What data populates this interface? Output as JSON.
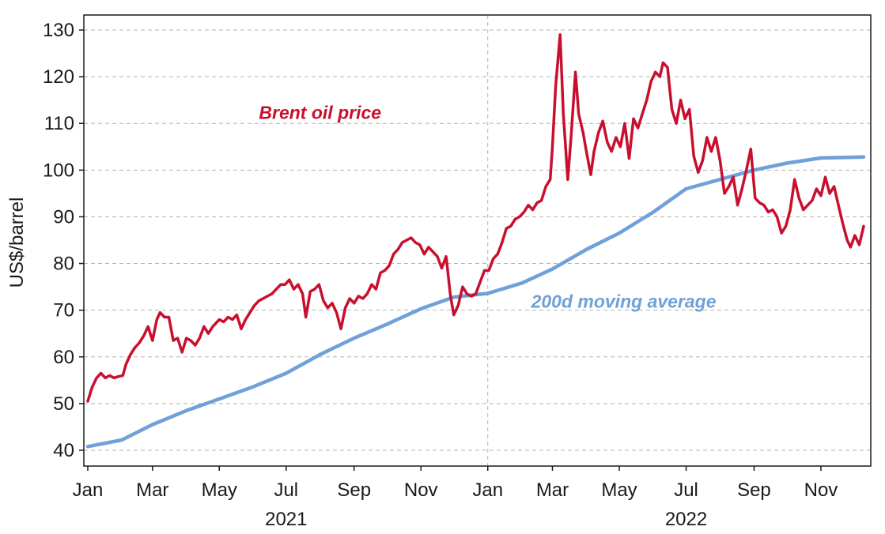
{
  "chart_data": {
    "type": "line",
    "ylabel": "US$/barrel",
    "ylim": [
      40,
      130
    ],
    "y_ticks": [
      40,
      50,
      60,
      70,
      80,
      90,
      100,
      110,
      120,
      130
    ],
    "x_tick_labels": [
      "Jan",
      "Mar",
      "May",
      "Jul",
      "Sep",
      "Nov",
      "Jan",
      "Mar",
      "May",
      "Jul",
      "Sep",
      "Nov"
    ],
    "x_tick_dates": [
      "2021-01-01",
      "2021-03-01",
      "2021-05-01",
      "2021-07-01",
      "2021-09-01",
      "2021-11-01",
      "2022-01-01",
      "2022-03-01",
      "2022-05-01",
      "2022-07-01",
      "2022-09-01",
      "2022-11-01"
    ],
    "year_labels": [
      {
        "label": "2021",
        "date": "2021-07-01"
      },
      {
        "label": "2022",
        "date": "2022-07-01"
      }
    ],
    "xlim": [
      "2021-01-01",
      "2022-12-10"
    ],
    "year_divider": "2022-01-01",
    "grid": "horizontal-dashed",
    "series": [
      {
        "name": "Brent oil price",
        "color": "#c8102e",
        "label_anchor_date": "2021-08-01",
        "label_anchor_value": 111,
        "points": [
          [
            "2021-01-01",
            50.5
          ],
          [
            "2021-01-05",
            53.5
          ],
          [
            "2021-01-09",
            55.5
          ],
          [
            "2021-01-13",
            56.5
          ],
          [
            "2021-01-17",
            55.5
          ],
          [
            "2021-01-21",
            56
          ],
          [
            "2021-01-25",
            55.5
          ],
          [
            "2021-01-29",
            55.8
          ],
          [
            "2021-02-02",
            56
          ],
          [
            "2021-02-05",
            58.5
          ],
          [
            "2021-02-09",
            60.5
          ],
          [
            "2021-02-13",
            62
          ],
          [
            "2021-02-17",
            63
          ],
          [
            "2021-02-21",
            64.5
          ],
          [
            "2021-02-25",
            66.5
          ],
          [
            "2021-03-01",
            63.5
          ],
          [
            "2021-03-05",
            68
          ],
          [
            "2021-03-08",
            69.5
          ],
          [
            "2021-03-12",
            68.5
          ],
          [
            "2021-03-16",
            68.5
          ],
          [
            "2021-03-20",
            63.5
          ],
          [
            "2021-03-24",
            64
          ],
          [
            "2021-03-28",
            61
          ],
          [
            "2021-04-01",
            64
          ],
          [
            "2021-04-05",
            63.5
          ],
          [
            "2021-04-09",
            62.5
          ],
          [
            "2021-04-13",
            64
          ],
          [
            "2021-04-17",
            66.5
          ],
          [
            "2021-04-21",
            65
          ],
          [
            "2021-04-25",
            66.5
          ],
          [
            "2021-05-01",
            68
          ],
          [
            "2021-05-05",
            67.5
          ],
          [
            "2021-05-09",
            68.5
          ],
          [
            "2021-05-13",
            68
          ],
          [
            "2021-05-17",
            69
          ],
          [
            "2021-05-21",
            66
          ],
          [
            "2021-05-25",
            68
          ],
          [
            "2021-05-29",
            69.5
          ],
          [
            "2021-06-02",
            71
          ],
          [
            "2021-06-06",
            72
          ],
          [
            "2021-06-10",
            72.5
          ],
          [
            "2021-06-14",
            73
          ],
          [
            "2021-06-18",
            73.5
          ],
          [
            "2021-06-22",
            74.5
          ],
          [
            "2021-06-26",
            75.5
          ],
          [
            "2021-06-30",
            75.5
          ],
          [
            "2021-07-04",
            76.5
          ],
          [
            "2021-07-08",
            74.5
          ],
          [
            "2021-07-12",
            75.5
          ],
          [
            "2021-07-16",
            73.5
          ],
          [
            "2021-07-19",
            68.5
          ],
          [
            "2021-07-23",
            74
          ],
          [
            "2021-07-27",
            74.5
          ],
          [
            "2021-07-31",
            75.5
          ],
          [
            "2021-08-04",
            72
          ],
          [
            "2021-08-08",
            70.5
          ],
          [
            "2021-08-12",
            71.5
          ],
          [
            "2021-08-16",
            69.5
          ],
          [
            "2021-08-20",
            66
          ],
          [
            "2021-08-24",
            70.5
          ],
          [
            "2021-08-28",
            72.5
          ],
          [
            "2021-09-01",
            71.5
          ],
          [
            "2021-09-05",
            73
          ],
          [
            "2021-09-09",
            72.5
          ],
          [
            "2021-09-13",
            73.5
          ],
          [
            "2021-09-17",
            75.5
          ],
          [
            "2021-09-21",
            74.5
          ],
          [
            "2021-09-25",
            78
          ],
          [
            "2021-09-29",
            78.5
          ],
          [
            "2021-10-03",
            79.5
          ],
          [
            "2021-10-07",
            82
          ],
          [
            "2021-10-11",
            83
          ],
          [
            "2021-10-15",
            84.5
          ],
          [
            "2021-10-19",
            85
          ],
          [
            "2021-10-23",
            85.5
          ],
          [
            "2021-10-27",
            84.5
          ],
          [
            "2021-10-31",
            84
          ],
          [
            "2021-11-04",
            82
          ],
          [
            "2021-11-08",
            83.5
          ],
          [
            "2021-11-12",
            82.5
          ],
          [
            "2021-11-16",
            81.5
          ],
          [
            "2021-11-20",
            79
          ],
          [
            "2021-11-24",
            81.5
          ],
          [
            "2021-11-28",
            73
          ],
          [
            "2021-12-01",
            69
          ],
          [
            "2021-12-05",
            71
          ],
          [
            "2021-12-09",
            75
          ],
          [
            "2021-12-13",
            73.5
          ],
          [
            "2021-12-17",
            73
          ],
          [
            "2021-12-21",
            73.5
          ],
          [
            "2021-12-25",
            76
          ],
          [
            "2021-12-29",
            78.5
          ],
          [
            "2022-01-02",
            78.5
          ],
          [
            "2022-01-06",
            81
          ],
          [
            "2022-01-10",
            82
          ],
          [
            "2022-01-14",
            84.5
          ],
          [
            "2022-01-18",
            87.5
          ],
          [
            "2022-01-22",
            88
          ],
          [
            "2022-01-26",
            89.5
          ],
          [
            "2022-01-30",
            90
          ],
          [
            "2022-02-03",
            91
          ],
          [
            "2022-02-07",
            92.5
          ],
          [
            "2022-02-11",
            91.5
          ],
          [
            "2022-02-15",
            93
          ],
          [
            "2022-02-19",
            93.5
          ],
          [
            "2022-02-23",
            96.5
          ],
          [
            "2022-02-27",
            98
          ],
          [
            "2022-03-01",
            105
          ],
          [
            "2022-03-04",
            118
          ],
          [
            "2022-03-08",
            129
          ],
          [
            "2022-03-11",
            112
          ],
          [
            "2022-03-15",
            98
          ],
          [
            "2022-03-18",
            107
          ],
          [
            "2022-03-22",
            121
          ],
          [
            "2022-03-25",
            112
          ],
          [
            "2022-03-29",
            108
          ],
          [
            "2022-04-01",
            104
          ],
          [
            "2022-04-05",
            99
          ],
          [
            "2022-04-08",
            104
          ],
          [
            "2022-04-12",
            108
          ],
          [
            "2022-04-16",
            110.5
          ],
          [
            "2022-04-20",
            106
          ],
          [
            "2022-04-24",
            104
          ],
          [
            "2022-04-28",
            107
          ],
          [
            "2022-05-02",
            105
          ],
          [
            "2022-05-06",
            110
          ],
          [
            "2022-05-10",
            102.5
          ],
          [
            "2022-05-14",
            111
          ],
          [
            "2022-05-18",
            109
          ],
          [
            "2022-05-22",
            112
          ],
          [
            "2022-05-26",
            115
          ],
          [
            "2022-05-30",
            119
          ],
          [
            "2022-06-03",
            121
          ],
          [
            "2022-06-07",
            120
          ],
          [
            "2022-06-10",
            123
          ],
          [
            "2022-06-14",
            122
          ],
          [
            "2022-06-18",
            113
          ],
          [
            "2022-06-22",
            110
          ],
          [
            "2022-06-26",
            115
          ],
          [
            "2022-06-30",
            111
          ],
          [
            "2022-07-04",
            113
          ],
          [
            "2022-07-08",
            103
          ],
          [
            "2022-07-12",
            99.5
          ],
          [
            "2022-07-16",
            102
          ],
          [
            "2022-07-20",
            107
          ],
          [
            "2022-07-24",
            104
          ],
          [
            "2022-07-28",
            107
          ],
          [
            "2022-08-01",
            102
          ],
          [
            "2022-08-05",
            95
          ],
          [
            "2022-08-09",
            96.5
          ],
          [
            "2022-08-13",
            98.5
          ],
          [
            "2022-08-17",
            92.5
          ],
          [
            "2022-08-21",
            96
          ],
          [
            "2022-08-25",
            100
          ],
          [
            "2022-08-29",
            104.5
          ],
          [
            "2022-09-02",
            94
          ],
          [
            "2022-09-06",
            93
          ],
          [
            "2022-09-10",
            92.5
          ],
          [
            "2022-09-14",
            91
          ],
          [
            "2022-09-18",
            91.5
          ],
          [
            "2022-09-22",
            90
          ],
          [
            "2022-09-26",
            86.5
          ],
          [
            "2022-09-30",
            88
          ],
          [
            "2022-10-04",
            91.5
          ],
          [
            "2022-10-08",
            98
          ],
          [
            "2022-10-12",
            94
          ],
          [
            "2022-10-16",
            91.5
          ],
          [
            "2022-10-20",
            92.5
          ],
          [
            "2022-10-24",
            93.5
          ],
          [
            "2022-10-28",
            96
          ],
          [
            "2022-11-01",
            94.5
          ],
          [
            "2022-11-05",
            98.5
          ],
          [
            "2022-11-09",
            95
          ],
          [
            "2022-11-13",
            96.5
          ],
          [
            "2022-11-17",
            92.5
          ],
          [
            "2022-11-21",
            88.5
          ],
          [
            "2022-11-25",
            85
          ],
          [
            "2022-11-28",
            83.5
          ],
          [
            "2022-12-02",
            86
          ],
          [
            "2022-12-06",
            84
          ],
          [
            "2022-12-10",
            88
          ]
        ]
      },
      {
        "name": "200d moving average",
        "color": "#6fa0d8",
        "label_anchor_date": "2022-05-05",
        "label_anchor_value": 70.5,
        "points": [
          [
            "2021-01-01",
            40.8
          ],
          [
            "2021-02-01",
            42.2
          ],
          [
            "2021-03-01",
            45.5
          ],
          [
            "2021-04-01",
            48.5
          ],
          [
            "2021-05-01",
            51
          ],
          [
            "2021-06-01",
            53.6
          ],
          [
            "2021-07-01",
            56.5
          ],
          [
            "2021-08-01",
            60.5
          ],
          [
            "2021-09-01",
            64
          ],
          [
            "2021-10-01",
            67
          ],
          [
            "2021-11-01",
            70.3
          ],
          [
            "2021-12-01",
            72.8
          ],
          [
            "2022-01-01",
            73.6
          ],
          [
            "2022-02-01",
            75.8
          ],
          [
            "2022-03-01",
            78.8
          ],
          [
            "2022-04-01",
            83
          ],
          [
            "2022-05-01",
            86.5
          ],
          [
            "2022-06-01",
            91
          ],
          [
            "2022-07-01",
            96
          ],
          [
            "2022-08-01",
            98
          ],
          [
            "2022-09-01",
            100
          ],
          [
            "2022-10-01",
            101.5
          ],
          [
            "2022-11-01",
            102.6
          ],
          [
            "2022-12-10",
            102.8
          ]
        ]
      }
    ]
  }
}
